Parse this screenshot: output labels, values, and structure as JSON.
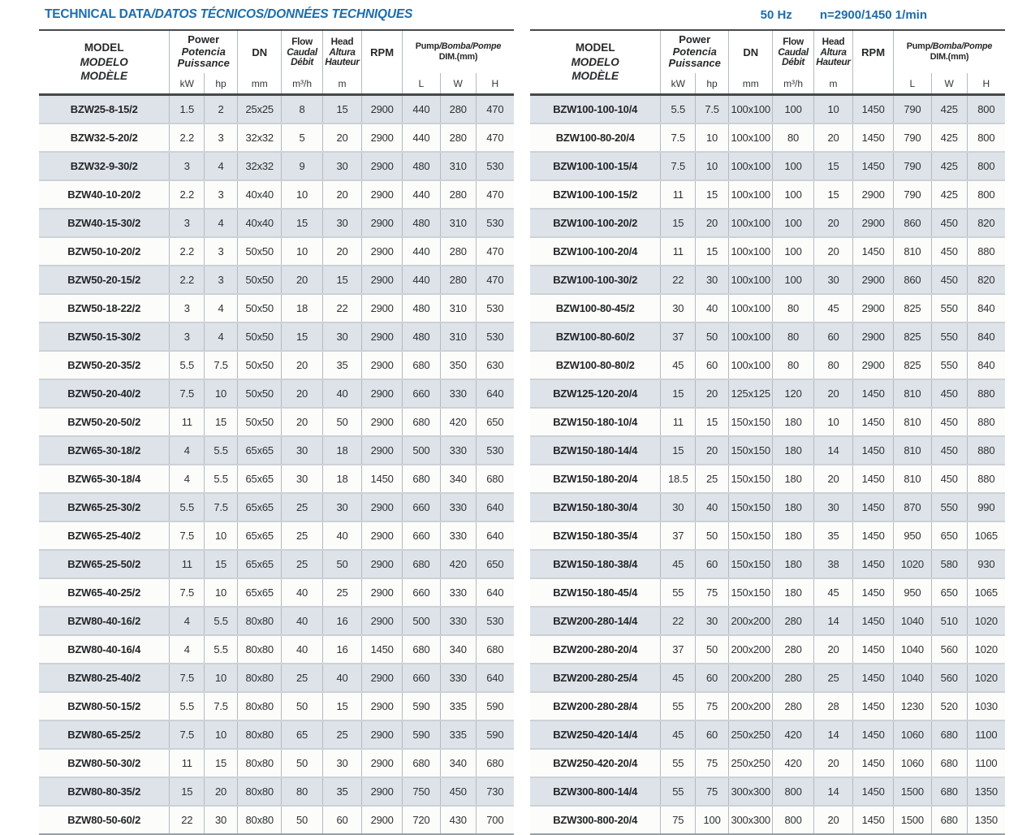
{
  "page": {
    "title_main": "TECHNICAL DATA",
    "title_rest": "/DATOS TÉCNICOS/DONNÉES TECHNIQUES",
    "frequency": "50 Hz",
    "speed": "n=2900/1450 1/min",
    "accent_color": "#1b6dad",
    "stripe_color": "#dee3e9"
  },
  "header": {
    "model": [
      "MODEL",
      "MODELO",
      "MODÈLE"
    ],
    "power": [
      "Power",
      "Potencia",
      "Puissance"
    ],
    "flow": [
      "Flow",
      "Caudal",
      "Débit"
    ],
    "head": [
      "Head",
      "Altura",
      "Hauteur"
    ],
    "dn": "DN",
    "rpm": "RPM",
    "dim_main": "Pump",
    "dim_rest": "/Bomba/Pompe",
    "dim_sub": "DIM.(mm)",
    "units": {
      "kw": "kW",
      "hp": "hp",
      "mm": "mm",
      "flow": "m³/h",
      "head": "m",
      "l": "L",
      "w": "W",
      "h": "H"
    }
  },
  "tables": {
    "left": {
      "rows": [
        [
          "BZW25-8-15/2",
          "1.5",
          "2",
          "25x25",
          "8",
          "15",
          "2900",
          "440",
          "280",
          "470"
        ],
        [
          "BZW32-5-20/2",
          "2.2",
          "3",
          "32x32",
          "5",
          "20",
          "2900",
          "440",
          "280",
          "470"
        ],
        [
          "BZW32-9-30/2",
          "3",
          "4",
          "32x32",
          "9",
          "30",
          "2900",
          "480",
          "310",
          "530"
        ],
        [
          "BZW40-10-20/2",
          "2.2",
          "3",
          "40x40",
          "10",
          "20",
          "2900",
          "440",
          "280",
          "470"
        ],
        [
          "BZW40-15-30/2",
          "3",
          "4",
          "40x40",
          "15",
          "30",
          "2900",
          "480",
          "310",
          "530"
        ],
        [
          "BZW50-10-20/2",
          "2.2",
          "3",
          "50x50",
          "10",
          "20",
          "2900",
          "440",
          "280",
          "470"
        ],
        [
          "BZW50-20-15/2",
          "2.2",
          "3",
          "50x50",
          "20",
          "15",
          "2900",
          "440",
          "280",
          "470"
        ],
        [
          "BZW50-18-22/2",
          "3",
          "4",
          "50x50",
          "18",
          "22",
          "2900",
          "480",
          "310",
          "530"
        ],
        [
          "BZW50-15-30/2",
          "3",
          "4",
          "50x50",
          "15",
          "30",
          "2900",
          "480",
          "310",
          "530"
        ],
        [
          "BZW50-20-35/2",
          "5.5",
          "7.5",
          "50x50",
          "20",
          "35",
          "2900",
          "680",
          "350",
          "630"
        ],
        [
          "BZW50-20-40/2",
          "7.5",
          "10",
          "50x50",
          "20",
          "40",
          "2900",
          "660",
          "330",
          "640"
        ],
        [
          "BZW50-20-50/2",
          "11",
          "15",
          "50x50",
          "20",
          "50",
          "2900",
          "680",
          "420",
          "650"
        ],
        [
          "BZW65-30-18/2",
          "4",
          "5.5",
          "65x65",
          "30",
          "18",
          "2900",
          "500",
          "330",
          "530"
        ],
        [
          "BZW65-30-18/4",
          "4",
          "5.5",
          "65x65",
          "30",
          "18",
          "1450",
          "680",
          "340",
          "680"
        ],
        [
          "BZW65-25-30/2",
          "5.5",
          "7.5",
          "65x65",
          "25",
          "30",
          "2900",
          "660",
          "330",
          "640"
        ],
        [
          "BZW65-25-40/2",
          "7.5",
          "10",
          "65x65",
          "25",
          "40",
          "2900",
          "660",
          "330",
          "640"
        ],
        [
          "BZW65-25-50/2",
          "11",
          "15",
          "65x65",
          "25",
          "50",
          "2900",
          "680",
          "420",
          "650"
        ],
        [
          "BZW65-40-25/2",
          "7.5",
          "10",
          "65x65",
          "40",
          "25",
          "2900",
          "660",
          "330",
          "640"
        ],
        [
          "BZW80-40-16/2",
          "4",
          "5.5",
          "80x80",
          "40",
          "16",
          "2900",
          "500",
          "330",
          "530"
        ],
        [
          "BZW80-40-16/4",
          "4",
          "5.5",
          "80x80",
          "40",
          "16",
          "1450",
          "680",
          "340",
          "680"
        ],
        [
          "BZW80-25-40/2",
          "7.5",
          "10",
          "80x80",
          "25",
          "40",
          "2900",
          "660",
          "330",
          "640"
        ],
        [
          "BZW80-50-15/2",
          "5.5",
          "7.5",
          "80x80",
          "50",
          "15",
          "2900",
          "590",
          "335",
          "590"
        ],
        [
          "BZW80-65-25/2",
          "7.5",
          "10",
          "80x80",
          "65",
          "25",
          "2900",
          "590",
          "335",
          "590"
        ],
        [
          "BZW80-50-30/2",
          "11",
          "15",
          "80x80",
          "50",
          "30",
          "2900",
          "680",
          "340",
          "680"
        ],
        [
          "BZW80-80-35/2",
          "15",
          "20",
          "80x80",
          "80",
          "35",
          "2900",
          "750",
          "450",
          "730"
        ],
        [
          "BZW80-50-60/2",
          "22",
          "30",
          "80x80",
          "50",
          "60",
          "2900",
          "720",
          "430",
          "700"
        ]
      ]
    },
    "right": {
      "rows": [
        [
          "BZW100-100-10/4",
          "5.5",
          "7.5",
          "100x100",
          "100",
          "10",
          "1450",
          "790",
          "425",
          "800"
        ],
        [
          "BZW100-80-20/4",
          "7.5",
          "10",
          "100x100",
          "80",
          "20",
          "1450",
          "790",
          "425",
          "800"
        ],
        [
          "BZW100-100-15/4",
          "7.5",
          "10",
          "100x100",
          "100",
          "15",
          "1450",
          "790",
          "425",
          "800"
        ],
        [
          "BZW100-100-15/2",
          "11",
          "15",
          "100x100",
          "100",
          "15",
          "2900",
          "790",
          "425",
          "800"
        ],
        [
          "BZW100-100-20/2",
          "15",
          "20",
          "100x100",
          "100",
          "20",
          "2900",
          "860",
          "450",
          "820"
        ],
        [
          "BZW100-100-20/4",
          "11",
          "15",
          "100x100",
          "100",
          "20",
          "1450",
          "810",
          "450",
          "880"
        ],
        [
          "BZW100-100-30/2",
          "22",
          "30",
          "100x100",
          "100",
          "30",
          "2900",
          "860",
          "450",
          "820"
        ],
        [
          "BZW100-80-45/2",
          "30",
          "40",
          "100x100",
          "80",
          "45",
          "2900",
          "825",
          "550",
          "840"
        ],
        [
          "BZW100-80-60/2",
          "37",
          "50",
          "100x100",
          "80",
          "60",
          "2900",
          "825",
          "550",
          "840"
        ],
        [
          "BZW100-80-80/2",
          "45",
          "60",
          "100x100",
          "80",
          "80",
          "2900",
          "825",
          "550",
          "840"
        ],
        [
          "BZW125-120-20/4",
          "15",
          "20",
          "125x125",
          "120",
          "20",
          "1450",
          "810",
          "450",
          "880"
        ],
        [
          "BZW150-180-10/4",
          "11",
          "15",
          "150x150",
          "180",
          "10",
          "1450",
          "810",
          "450",
          "880"
        ],
        [
          "BZW150-180-14/4",
          "15",
          "20",
          "150x150",
          "180",
          "14",
          "1450",
          "810",
          "450",
          "880"
        ],
        [
          "BZW150-180-20/4",
          "18.5",
          "25",
          "150x150",
          "180",
          "20",
          "1450",
          "810",
          "450",
          "880"
        ],
        [
          "BZW150-180-30/4",
          "30",
          "40",
          "150x150",
          "180",
          "30",
          "1450",
          "870",
          "550",
          "990"
        ],
        [
          "BZW150-180-35/4",
          "37",
          "50",
          "150x150",
          "180",
          "35",
          "1450",
          "950",
          "650",
          "1065"
        ],
        [
          "BZW150-180-38/4",
          "45",
          "60",
          "150x150",
          "180",
          "38",
          "1450",
          "1020",
          "580",
          "930"
        ],
        [
          "BZW150-180-45/4",
          "55",
          "75",
          "150x150",
          "180",
          "45",
          "1450",
          "950",
          "650",
          "1065"
        ],
        [
          "BZW200-280-14/4",
          "22",
          "30",
          "200x200",
          "280",
          "14",
          "1450",
          "1040",
          "510",
          "1020"
        ],
        [
          "BZW200-280-20/4",
          "37",
          "50",
          "200x200",
          "280",
          "20",
          "1450",
          "1040",
          "560",
          "1020"
        ],
        [
          "BZW200-280-25/4",
          "45",
          "60",
          "200x200",
          "280",
          "25",
          "1450",
          "1040",
          "560",
          "1020"
        ],
        [
          "BZW200-280-28/4",
          "55",
          "75",
          "200x200",
          "280",
          "28",
          "1450",
          "1230",
          "520",
          "1030"
        ],
        [
          "BZW250-420-14/4",
          "45",
          "60",
          "250x250",
          "420",
          "14",
          "1450",
          "1060",
          "680",
          "1100"
        ],
        [
          "BZW250-420-20/4",
          "55",
          "75",
          "250x250",
          "420",
          "20",
          "1450",
          "1060",
          "680",
          "1100"
        ],
        [
          "BZW300-800-14/4",
          "55",
          "75",
          "300x300",
          "800",
          "14",
          "1450",
          "1500",
          "680",
          "1350"
        ],
        [
          "BZW300-800-20/4",
          "75",
          "100",
          "300x300",
          "800",
          "20",
          "1450",
          "1500",
          "680",
          "1350"
        ]
      ]
    }
  }
}
